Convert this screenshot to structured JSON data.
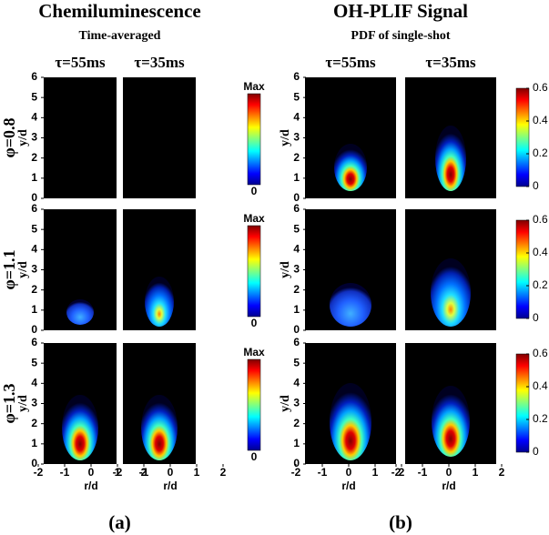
{
  "figure": {
    "left": {
      "title": "Chemiluminescence",
      "subtitle": "Time-averaged",
      "columns": [
        "τ=55ms",
        "τ=35ms"
      ],
      "colorbar_labels": [
        "Max",
        "0"
      ],
      "label": "(a)"
    },
    "right": {
      "title": "OH-PLIF Signal",
      "subtitle": "PDF of single-shot",
      "columns": [
        "τ=55ms",
        "τ=35ms"
      ],
      "colorbar_ticks": [
        0,
        0.2,
        0.4,
        0.6
      ],
      "colorbar_lim": [
        0,
        0.6
      ],
      "label": "(b)"
    },
    "rows": [
      "φ=0.8",
      "φ=1.1",
      "φ=1.3"
    ],
    "ylabel": "y/d",
    "xlabel": "r/d",
    "ylim": [
      0,
      6
    ],
    "yticks": [
      0,
      1,
      2,
      3,
      4,
      5,
      6
    ],
    "xlim": [
      -2,
      2
    ],
    "xticks": [
      -2,
      -1,
      0,
      1,
      2
    ]
  }
}
